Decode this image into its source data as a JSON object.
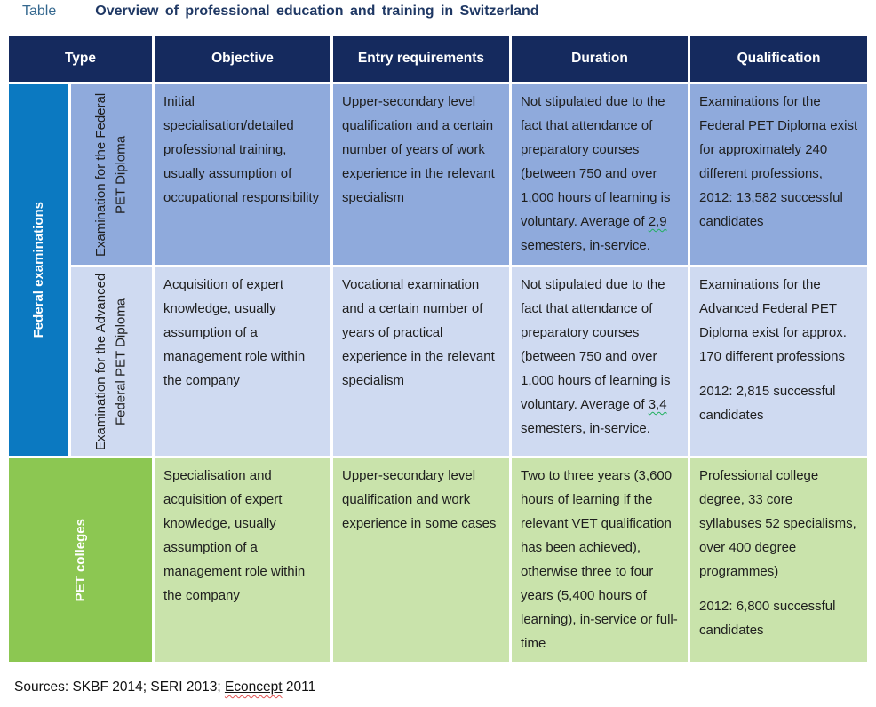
{
  "title": {
    "label": "Table",
    "text": "Overview of professional education and training in Switzerland"
  },
  "header": {
    "type": "Type",
    "objective": "Objective",
    "entry": "Entry requirements",
    "duration": "Duration",
    "qualification": "Qualification"
  },
  "groups": {
    "federal": "Federal examinations",
    "pet": "PET colleges"
  },
  "rows": [
    {
      "type": "Examination for the Federal PET Diploma",
      "objective": "Initial specialisation/detailed professional training, usually assumption of occupational responsibility",
      "entry": "Upper-secondary level qualification and a certain number of years of work experience in the relevant specialism",
      "duration_pre": "Not stipulated due to the fact that attendance of preparatory courses (between 750 and over 1,000 hours of learning is voluntary. Average of ",
      "duration_wavy": "2,9",
      "duration_post": " semesters, in-service.",
      "qualification_p1": "Examinations for the Federal PET Diploma exist for approximately 240 different professions, 2012: 13,582 successful candidates"
    },
    {
      "type": "Examination for the Advanced Federal PET Diploma",
      "objective": "Acquisition of expert knowledge, usually assumption of a management role within the company",
      "entry": "Vocational examination and a certain number of years of practical experience in the relevant specialism",
      "duration_pre": "Not stipulated due to the fact that attendance of preparatory courses (between 750 and over 1,000 hours of learning is voluntary. Average of ",
      "duration_wavy": "3,4",
      "duration_post": " semesters, in-service.",
      "qualification_p1": "Examinations for the Advanced Federal PET Diploma exist for approx. 170 different professions",
      "qualification_p2": "2012: 2,815 successful candidates"
    },
    {
      "objective": "Specialisation and acquisition of expert knowledge, usually assumption of a management role within the company",
      "entry": "Upper-secondary level qualification and work experience in some cases",
      "duration": "Two to three years (3,600 hours of learning if the relevant VET qualification has been achieved), otherwise three to four years (5,400 hours of learning), in-service or full-time",
      "qualification_p1": "Professional college degree, 33 core syllabuses 52 specialisms, over 400 degree programmes)",
      "qualification_p2": "2012: 6,800 successful candidates"
    }
  ],
  "sources": {
    "pre": "Sources: SKBF 2014; SERI 2013; ",
    "underlined_word": "Econcept",
    "post": " 2011"
  },
  "colors": {
    "header_navy": "#152a5e",
    "federal_blue": "#0b79c1",
    "row1_blue": "#8faadc",
    "row2_blue": "#cfdaf1",
    "pet_green": "#8cc752",
    "row3_green": "#c9e3ab",
    "title_label": "#35688f",
    "title_text": "#1f3864",
    "spellcheck_green": "#1faf5e",
    "spellcheck_red": "#e05252"
  }
}
